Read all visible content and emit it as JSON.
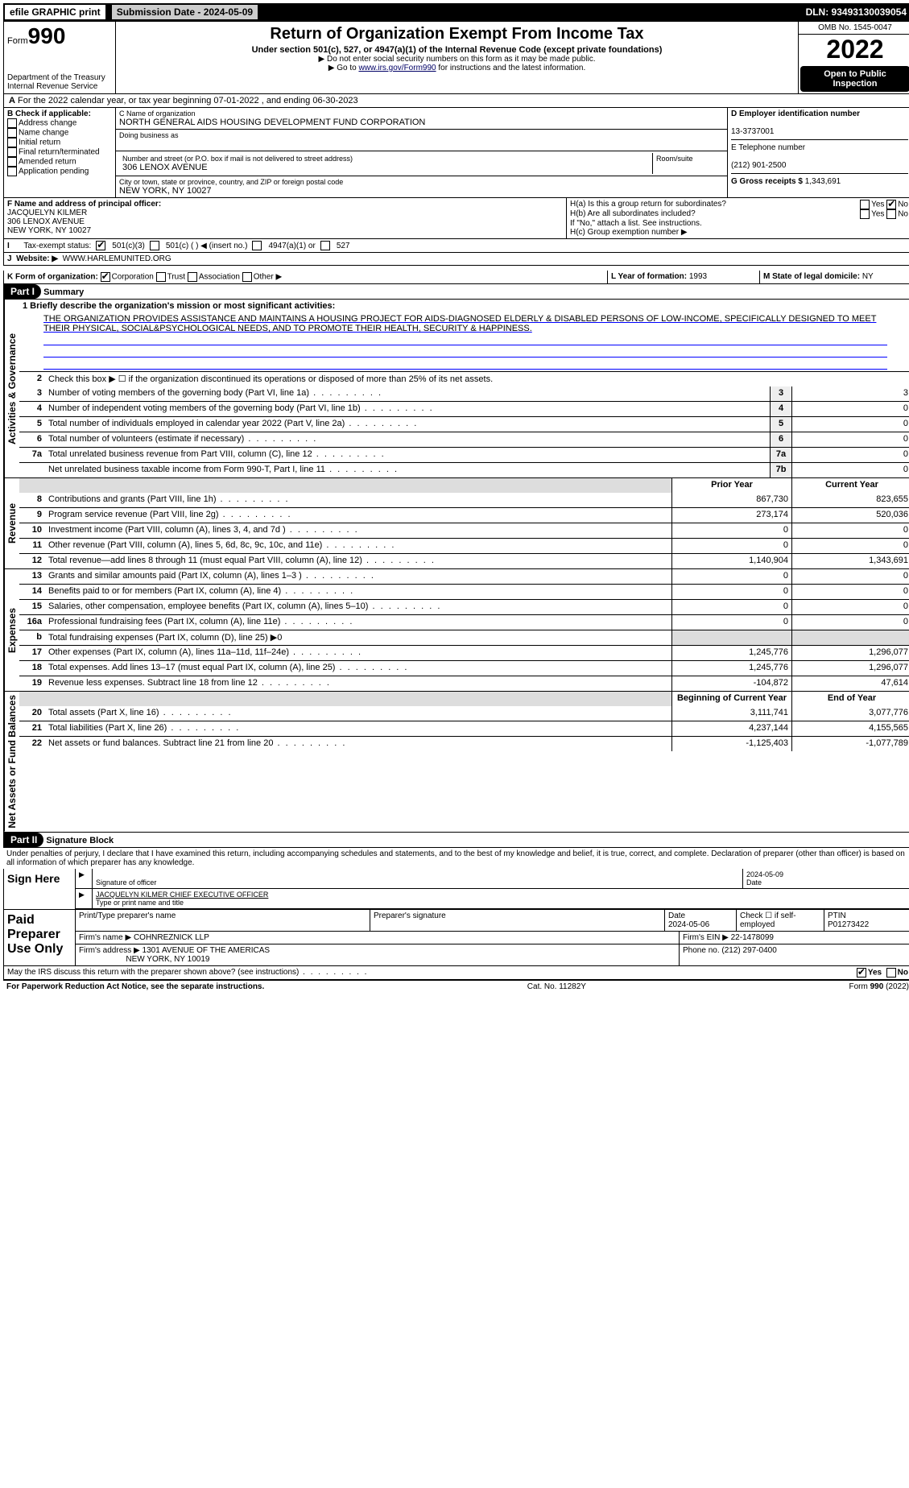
{
  "topbar": {
    "efile": "efile GRAPHIC print",
    "submission_label": "Submission Date - 2024-05-09",
    "dln": "DLN: 93493130039054"
  },
  "header": {
    "form_prefix": "Form",
    "form_number": "990",
    "dept": "Department of the Treasury",
    "irs": "Internal Revenue Service",
    "title": "Return of Organization Exempt From Income Tax",
    "subtitle": "Under section 501(c), 527, or 4947(a)(1) of the Internal Revenue Code (except private foundations)",
    "note1": "▶ Do not enter social security numbers on this form as it may be made public.",
    "note2_pre": "▶ Go to ",
    "note2_link": "www.irs.gov/Form990",
    "note2_post": " for instructions and the latest information.",
    "omb": "OMB No. 1545-0047",
    "year": "2022",
    "open": "Open to Public Inspection"
  },
  "row_a": "For the 2022 calendar year, or tax year beginning 07-01-2022   , and ending 06-30-2023",
  "b": {
    "header": "B Check if applicable:",
    "items": [
      "Address change",
      "Name change",
      "Initial return",
      "Final return/terminated",
      "Amended return",
      "Application pending"
    ]
  },
  "c": {
    "name_label": "C Name of organization",
    "name": "NORTH GENERAL AIDS HOUSING DEVELOPMENT FUND CORPORATION",
    "dba_label": "Doing business as",
    "street_label": "Number and street (or P.O. box if mail is not delivered to street address)",
    "room_label": "Room/suite",
    "street": "306 LENOX AVENUE",
    "city_label": "City or town, state or province, country, and ZIP or foreign postal code",
    "city": "NEW YORK, NY  10027"
  },
  "d": {
    "ein_label": "D Employer identification number",
    "ein": "13-3737001",
    "phone_label": "E Telephone number",
    "phone": "(212) 901-2500",
    "gross_label": "G Gross receipts $",
    "gross": "1,343,691"
  },
  "f": {
    "label": "F  Name and address of principal officer:",
    "name": "JACQUELYN KILMER",
    "addr1": "306 LENOX AVENUE",
    "addr2": "NEW YORK, NY  10027"
  },
  "h": {
    "a": "H(a)  Is this a group return for subordinates?",
    "b": "H(b)  Are all subordinates included?",
    "b_note": "If \"No,\" attach a list. See instructions.",
    "c": "H(c)  Group exemption number ▶",
    "yes": "Yes",
    "no": "No"
  },
  "i": {
    "label": "Tax-exempt status:",
    "opt1": "501(c)(3)",
    "opt2": "501(c) (  ) ◀ (insert no.)",
    "opt3": "4947(a)(1) or",
    "opt4": "527"
  },
  "j": {
    "label": "Website: ▶",
    "url": "WWW.HARLEMUNITED.ORG"
  },
  "k": {
    "label": "K Form of organization:",
    "corp": "Corporation",
    "trust": "Trust",
    "assoc": "Association",
    "other": "Other ▶"
  },
  "l": {
    "year_label": "L Year of formation:",
    "year": "1993",
    "state_label": "M State of legal domicile:",
    "state": "NY"
  },
  "part1": {
    "header": "Part I",
    "title": "Summary",
    "line1_label": "1  Briefly describe the organization's mission or most significant activities:",
    "mission": "THE ORGANIZATION PROVIDES ASSISTANCE AND MAINTAINS A HOUSING PROJECT FOR AIDS-DIAGNOSED ELDERLY & DISABLED PERSONS OF LOW-INCOME, SPECIFICALLY DESIGNED TO MEET THEIR PHYSICAL, SOCIAL&PSYCHOLOGICAL NEEDS, AND TO PROMOTE THEIR HEALTH, SECURITY & HAPPINESS.",
    "line2": "Check this box ▶ ☐  if the organization discontinued its operations or disposed of more than 25% of its net assets.",
    "vtabs": {
      "gov": "Activities & Governance",
      "rev": "Revenue",
      "exp": "Expenses",
      "net": "Net Assets or Fund Balances"
    },
    "gov_rows": [
      {
        "n": "3",
        "d": "Number of voting members of the governing body (Part VI, line 1a)",
        "box": "3",
        "v": "3"
      },
      {
        "n": "4",
        "d": "Number of independent voting members of the governing body (Part VI, line 1b)",
        "box": "4",
        "v": "0"
      },
      {
        "n": "5",
        "d": "Total number of individuals employed in calendar year 2022 (Part V, line 2a)",
        "box": "5",
        "v": "0"
      },
      {
        "n": "6",
        "d": "Total number of volunteers (estimate if necessary)",
        "box": "6",
        "v": "0"
      },
      {
        "n": "7a",
        "d": "Total unrelated business revenue from Part VIII, column (C), line 12",
        "box": "7a",
        "v": "0"
      },
      {
        "n": "",
        "d": "Net unrelated business taxable income from Form 990-T, Part I, line 11",
        "box": "7b",
        "v": "0"
      }
    ],
    "col_headers": {
      "prior": "Prior Year",
      "current": "Current Year"
    },
    "rev_rows": [
      {
        "n": "8",
        "d": "Contributions and grants (Part VIII, line 1h)",
        "p": "867,730",
        "c": "823,655"
      },
      {
        "n": "9",
        "d": "Program service revenue (Part VIII, line 2g)",
        "p": "273,174",
        "c": "520,036"
      },
      {
        "n": "10",
        "d": "Investment income (Part VIII, column (A), lines 3, 4, and 7d )",
        "p": "0",
        "c": "0"
      },
      {
        "n": "11",
        "d": "Other revenue (Part VIII, column (A), lines 5, 6d, 8c, 9c, 10c, and 11e)",
        "p": "0",
        "c": "0"
      },
      {
        "n": "12",
        "d": "Total revenue—add lines 8 through 11 (must equal Part VIII, column (A), line 12)",
        "p": "1,140,904",
        "c": "1,343,691"
      }
    ],
    "exp_rows": [
      {
        "n": "13",
        "d": "Grants and similar amounts paid (Part IX, column (A), lines 1–3 )",
        "p": "0",
        "c": "0"
      },
      {
        "n": "14",
        "d": "Benefits paid to or for members (Part IX, column (A), line 4)",
        "p": "0",
        "c": "0"
      },
      {
        "n": "15",
        "d": "Salaries, other compensation, employee benefits (Part IX, column (A), lines 5–10)",
        "p": "0",
        "c": "0"
      },
      {
        "n": "16a",
        "d": "Professional fundraising fees (Part IX, column (A), line 11e)",
        "p": "0",
        "c": "0"
      },
      {
        "n": "b",
        "d": "Total fundraising expenses (Part IX, column (D), line 25) ▶0",
        "p": "",
        "c": "",
        "shade": true
      },
      {
        "n": "17",
        "d": "Other expenses (Part IX, column (A), lines 11a–11d, 11f–24e)",
        "p": "1,245,776",
        "c": "1,296,077"
      },
      {
        "n": "18",
        "d": "Total expenses. Add lines 13–17 (must equal Part IX, column (A), line 25)",
        "p": "1,245,776",
        "c": "1,296,077"
      },
      {
        "n": "19",
        "d": "Revenue less expenses. Subtract line 18 from line 12",
        "p": "-104,872",
        "c": "47,614"
      }
    ],
    "net_headers": {
      "begin": "Beginning of Current Year",
      "end": "End of Year"
    },
    "net_rows": [
      {
        "n": "20",
        "d": "Total assets (Part X, line 16)",
        "p": "3,111,741",
        "c": "3,077,776"
      },
      {
        "n": "21",
        "d": "Total liabilities (Part X, line 26)",
        "p": "4,237,144",
        "c": "4,155,565"
      },
      {
        "n": "22",
        "d": "Net assets or fund balances. Subtract line 21 from line 20",
        "p": "-1,125,403",
        "c": "-1,077,789"
      }
    ]
  },
  "part2": {
    "header": "Part II",
    "title": "Signature Block",
    "declaration": "Under penalties of perjury, I declare that I have examined this return, including accompanying schedules and statements, and to the best of my knowledge and belief, it is true, correct, and complete. Declaration of preparer (other than officer) is based on all information of which preparer has any knowledge.",
    "sign_here": "Sign Here",
    "sig_officer": "Signature of officer",
    "sig_date": "2024-05-09",
    "date_label": "Date",
    "officer_name": "JACQUELYN KILMER  CHIEF EXECUTIVE OFFICER",
    "type_label": "Type or print name and title",
    "paid": "Paid Preparer Use Only",
    "prep_name_label": "Print/Type preparer's name",
    "prep_sig_label": "Preparer's signature",
    "prep_date_label": "Date",
    "prep_date": "2024-05-06",
    "check_self": "Check ☐ if self-employed",
    "ptin_label": "PTIN",
    "ptin": "P01273422",
    "firm_name_label": "Firm's name    ▶",
    "firm_name": "COHNREZNICK LLP",
    "firm_ein_label": "Firm's EIN ▶",
    "firm_ein": "22-1478099",
    "firm_addr_label": "Firm's address ▶",
    "firm_addr": "1301 AVENUE OF THE AMERICAS",
    "firm_city": "NEW YORK, NY  10019",
    "firm_phone_label": "Phone no.",
    "firm_phone": "(212) 297-0400",
    "discuss": "May the IRS discuss this return with the preparer shown above? (see instructions)"
  },
  "footer": {
    "left": "For Paperwork Reduction Act Notice, see the separate instructions.",
    "mid": "Cat. No. 11282Y",
    "right": "Form 990 (2022)"
  }
}
